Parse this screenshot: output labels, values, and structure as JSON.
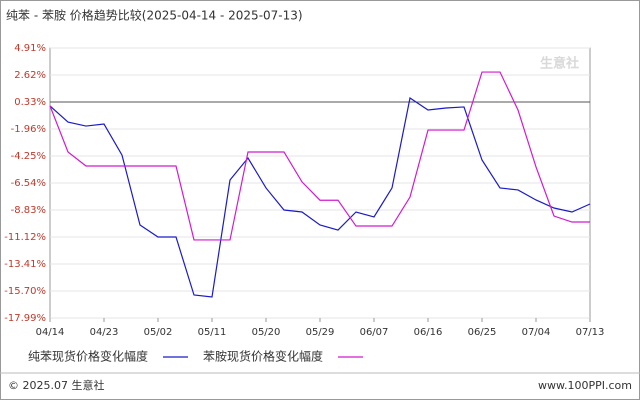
{
  "chart_data": {
    "type": "line",
    "title": "纯苯 - 苯胺 价格趋势比较(2025-04-14 - 2025-07-13)",
    "watermark": "生意社",
    "footer_left": "© 2025.07 生意社",
    "footer_right": "www.100PPI.com",
    "x": [
      "04/14",
      "04/17",
      "04/20",
      "04/23",
      "04/26",
      "04/29",
      "05/02",
      "05/05",
      "05/08",
      "05/11",
      "05/14",
      "05/17",
      "05/20",
      "05/23",
      "05/26",
      "05/29",
      "06/01",
      "06/04",
      "06/07",
      "06/10",
      "06/13",
      "06/16",
      "06/19",
      "06/22",
      "06/25",
      "06/28",
      "07/01",
      "07/04",
      "07/07",
      "07/10",
      "07/13"
    ],
    "xticks": [
      "04/14",
      "04/23",
      "05/02",
      "05/11",
      "05/20",
      "05/29",
      "06/07",
      "06/16",
      "06/25",
      "07/04",
      "07/13"
    ],
    "series": [
      {
        "name": "纯苯现货价格变化幅度",
        "color": "#1a1acc",
        "values": [
          0.0,
          -1.37,
          -1.71,
          -1.54,
          -4.17,
          -10.1,
          -11.12,
          -11.12,
          -16.04,
          -16.21,
          -6.29,
          -4.42,
          -6.96,
          -8.83,
          -9.0,
          -10.1,
          -10.53,
          -9.0,
          -9.42,
          -6.96,
          0.67,
          -0.35,
          -0.18,
          -0.09,
          -4.59,
          -6.96,
          -7.13,
          -7.98,
          -8.66,
          -9.0,
          -8.32
        ]
      },
      {
        "name": "苯胺现货价格变化幅度",
        "color": "#d21ad2",
        "values": [
          0.0,
          -3.91,
          -5.1,
          -5.1,
          -5.1,
          -5.1,
          -5.1,
          -5.1,
          -11.37,
          -11.37,
          -11.37,
          -3.91,
          -3.91,
          -3.91,
          -6.45,
          -8.0,
          -8.0,
          -10.19,
          -10.19,
          -10.19,
          -7.73,
          -2.05,
          -2.05,
          -2.05,
          2.87,
          2.87,
          -0.35,
          -5.18,
          -9.34,
          -9.85,
          -9.85
        ]
      }
    ],
    "ylim": [
      -17.99,
      4.91
    ],
    "yticks": [
      {
        "value": -17.99,
        "label": "-17.99%"
      },
      {
        "value": -15.7,
        "label": "-15.70%"
      },
      {
        "value": -13.41,
        "label": "-13.41%"
      },
      {
        "value": -11.12,
        "label": "-11.12%"
      },
      {
        "value": -8.83,
        "label": "-8.83%"
      },
      {
        "value": -6.54,
        "label": "-6.54%"
      },
      {
        "value": -4.25,
        "label": "-4.25%"
      },
      {
        "value": -1.96,
        "label": "-1.96%"
      },
      {
        "value": 0.33,
        "label": "0.33%"
      },
      {
        "value": 2.62,
        "label": "2.62%"
      },
      {
        "value": 4.91,
        "label": "4.91%"
      }
    ],
    "reference_y": 0.33,
    "grid": true
  }
}
